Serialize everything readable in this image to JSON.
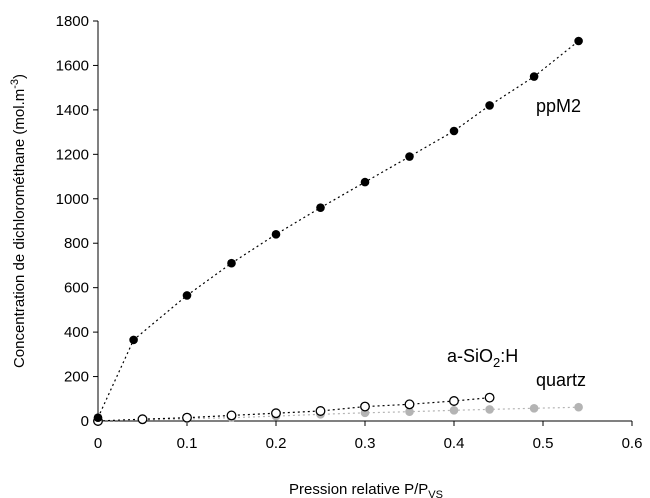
{
  "chart_data": {
    "type": "scatter",
    "xlabel": "Pression relative P/P",
    "xlabel_sub": "VS",
    "ylabel": "Concentration de dichlorométhane (mol.m",
    "ylabel_sup": "-3",
    "ylabel_end": ")",
    "xlim": [
      0,
      0.6
    ],
    "ylim": [
      0,
      1800
    ],
    "xticks": [
      0,
      0.1,
      0.2,
      0.3,
      0.4,
      0.5,
      0.6
    ],
    "yticks": [
      0,
      200,
      400,
      600,
      800,
      1000,
      1200,
      1400,
      1600,
      1800
    ],
    "grid": false,
    "series": [
      {
        "name": "ppM2",
        "marker": "filled",
        "color": "#000000",
        "x": [
          0,
          0.04,
          0.1,
          0.15,
          0.2,
          0.25,
          0.3,
          0.35,
          0.4,
          0.44,
          0.49,
          0.54
        ],
        "y": [
          15,
          365,
          565,
          710,
          840,
          960,
          1075,
          1190,
          1305,
          1420,
          1550,
          1710
        ]
      },
      {
        "name": "a-SiO",
        "name_sub": "2",
        "name_end": ":H",
        "marker": "open",
        "color": "#000000",
        "x": [
          0,
          0.05,
          0.1,
          0.15,
          0.2,
          0.25,
          0.3,
          0.35,
          0.4,
          0.44
        ],
        "y": [
          0,
          8,
          15,
          25,
          35,
          45,
          65,
          75,
          90,
          105
        ]
      },
      {
        "name": "quartz",
        "marker": "filled",
        "color": "#b4b4b4",
        "x": [
          0,
          0.05,
          0.1,
          0.15,
          0.2,
          0.25,
          0.3,
          0.35,
          0.4,
          0.44,
          0.49,
          0.54
        ],
        "y": [
          0,
          5,
          10,
          15,
          22,
          30,
          37,
          42,
          48,
          52,
          57,
          62
        ]
      }
    ]
  }
}
